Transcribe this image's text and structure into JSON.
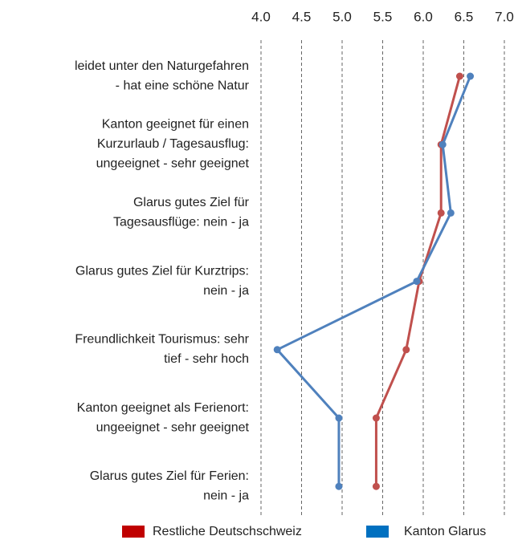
{
  "chart_data": {
    "type": "line",
    "orientation": "horizontal",
    "categories": [
      [
        "leidet unter den Naturgefahren",
        "- hat eine schöne Natur"
      ],
      [
        "Kanton geeignet für einen",
        "Kurzurlaub / Tagesausflug:",
        "ungeeignet - sehr geeignet"
      ],
      [
        "Glarus gutes Ziel für",
        "Tagesausflüge: nein - ja"
      ],
      [
        "Glarus gutes Ziel für Kurztrips:",
        "nein - ja"
      ],
      [
        "Freundlichkeit Tourismus: sehr",
        "tief - sehr hoch"
      ],
      [
        "Kanton geeignet als Ferienort:",
        "ungeeignet - sehr geeignet"
      ],
      [
        "Glarus gutes Ziel für Ferien:",
        "nein - ja"
      ]
    ],
    "series": [
      {
        "name": "Restliche Deutschschweiz",
        "color": "#c0504d",
        "legend_color": "#c00000",
        "values": [
          6.45,
          6.22,
          6.22,
          5.95,
          5.79,
          5.42,
          5.42
        ]
      },
      {
        "name": "Kanton Glarus",
        "color": "#4f81bd",
        "legend_color": "#0070c0",
        "values": [
          6.58,
          6.24,
          6.34,
          5.92,
          4.2,
          4.96,
          4.96
        ]
      }
    ],
    "xlim": [
      4,
      7
    ],
    "xticks": [
      {
        "value": 4,
        "label": "4.0"
      },
      {
        "value": 4.5,
        "label": "4.5"
      },
      {
        "value": 5,
        "label": "5.0"
      },
      {
        "value": 5.5,
        "label": "5.5"
      },
      {
        "value": 6,
        "label": "6.0"
      },
      {
        "value": 6.5,
        "label": "6.5"
      },
      {
        "value": 7,
        "label": "7.0"
      }
    ],
    "grid": true,
    "legend": "bottom"
  }
}
